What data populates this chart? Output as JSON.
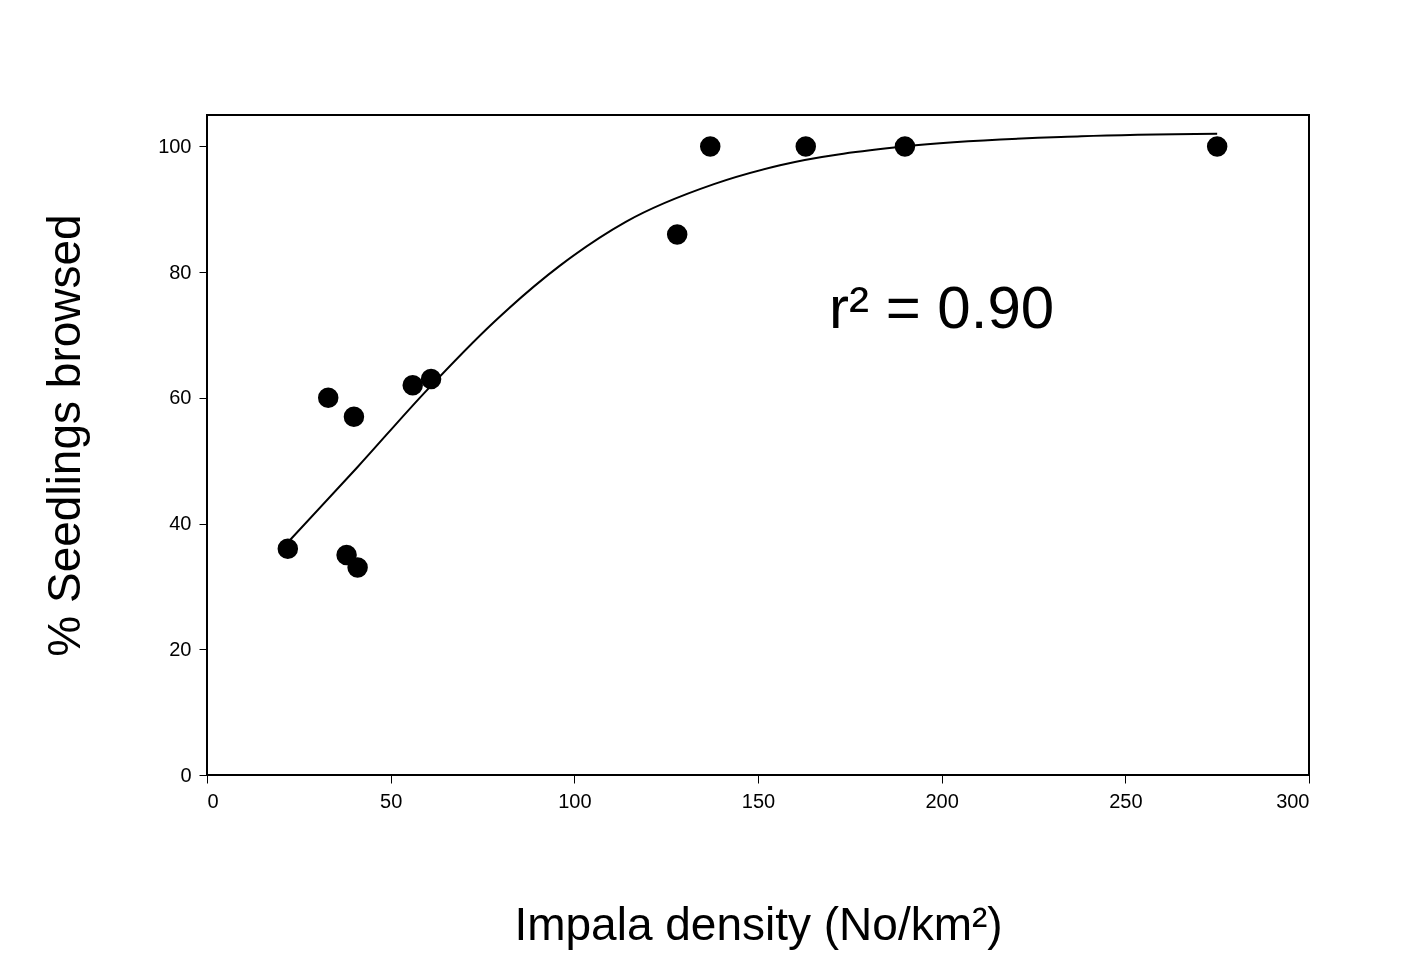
{
  "chart_data": {
    "type": "scatter",
    "xlabel": "Impala density (No/km²)",
    "ylabel": "% Seedlings browsed",
    "xlim": [
      0,
      300
    ],
    "xticks": [
      0,
      50,
      100,
      150,
      200,
      250,
      300
    ],
    "ylim": [
      0,
      105
    ],
    "yticks": [
      0,
      20,
      40,
      60,
      80,
      100
    ],
    "grid": false,
    "marker": "circle",
    "annotations": [
      "r² = 0.90"
    ],
    "series": [
      {
        "color": "#000000",
        "x": [
          22,
          33,
          38,
          40,
          41,
          56,
          61,
          128,
          137,
          163,
          190,
          275
        ],
        "values": [
          36,
          60,
          35,
          57,
          33,
          62,
          63,
          86,
          100,
          100,
          100,
          100
        ]
      },
      {
        "type": "line",
        "color": "#000000",
        "line_style": "solid",
        "marker": "none",
        "x": [
          22,
          41,
          59.5,
          78,
          96,
          114,
          138,
          156,
          190,
          238,
          275
        ],
        "values": [
          37,
          49,
          61,
          72,
          81,
          88,
          94,
          97,
          100,
          101.6,
          102
        ]
      }
    ]
  }
}
